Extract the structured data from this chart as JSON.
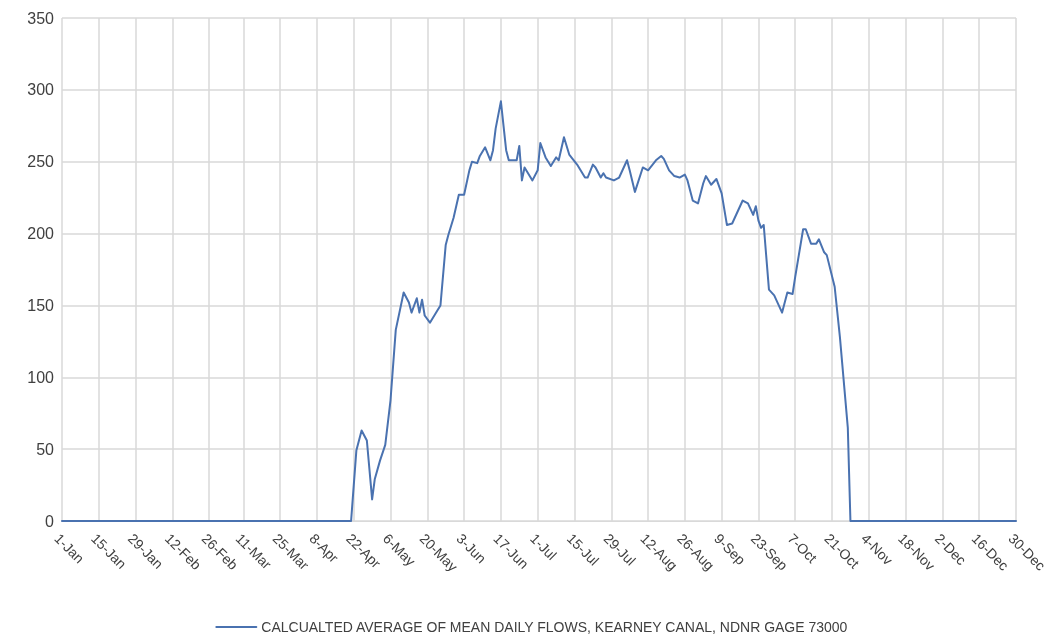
{
  "chart_data": {
    "type": "line",
    "x": [
      "--01-01",
      "--04-21",
      "--04-23",
      "--04-25",
      "--04-27",
      "--04-29",
      "--04-30",
      "--05-02",
      "--05-04",
      "--05-06",
      "--05-08",
      "--05-11",
      "--05-13",
      "--05-14",
      "--05-16",
      "--05-17",
      "--05-18",
      "--05-19",
      "--05-21",
      "--05-24",
      "--05-25",
      "--05-27",
      "--05-28",
      "--05-30",
      "--06-01",
      "--06-03",
      "--06-05",
      "--06-06",
      "--06-08",
      "--06-09",
      "--06-11",
      "--06-13",
      "--06-14",
      "--06-15",
      "--06-17",
      "--06-19",
      "--06-20",
      "--06-23",
      "--06-24",
      "--06-25",
      "--06-26",
      "--06-29",
      "--07-01",
      "--07-02",
      "--07-04",
      "--07-06",
      "--07-08",
      "--07-09",
      "--07-11",
      "--07-13",
      "--07-16",
      "--07-19",
      "--07-20",
      "--07-22",
      "--07-23",
      "--07-25",
      "--07-26",
      "--07-27",
      "--07-30",
      "--08-01",
      "--08-04",
      "--08-05",
      "--08-07",
      "--08-10",
      "--08-12",
      "--08-15",
      "--08-17",
      "--08-18",
      "--08-20",
      "--08-22",
      "--08-24",
      "--08-26",
      "--08-27",
      "--08-29",
      "--08-31",
      "--09-02",
      "--09-03",
      "--09-05",
      "--09-07",
      "--09-09",
      "--09-11",
      "--09-13",
      "--09-17",
      "--09-19",
      "--09-21",
      "--09-22",
      "--09-23",
      "--09-24",
      "--09-25",
      "--09-27",
      "--09-29",
      "--10-02",
      "--10-04",
      "--10-06",
      "--10-07",
      "--10-10",
      "--10-11",
      "--10-13",
      "--10-15",
      "--10-16",
      "--10-18",
      "--10-19",
      "--10-22",
      "--10-24",
      "--10-27",
      "--10-28",
      "--12-30"
    ],
    "series": [
      {
        "name": "CALCUALTED AVERAGE OF MEAN DAILY FLOWS, KEARNEY CANAL, NDNR GAGE 73000",
        "color": "#4a72b0",
        "values": [
          0,
          0,
          49,
          63,
          56,
          15,
          29,
          42,
          53,
          84,
          133,
          159,
          152,
          145,
          155,
          145,
          154,
          143,
          138,
          147,
          150,
          192,
          199,
          211,
          227,
          227,
          244,
          250,
          249,
          254,
          260,
          251,
          258,
          273,
          292,
          258,
          251,
          251,
          261,
          237,
          246,
          237,
          244,
          263,
          253,
          247,
          253,
          251,
          267,
          255,
          248,
          239,
          239,
          248,
          246,
          239,
          242,
          239,
          237,
          239,
          251,
          244,
          229,
          246,
          244,
          251,
          254,
          252,
          244,
          240,
          239,
          241,
          237,
          223,
          221,
          235,
          240,
          234,
          238,
          228,
          206,
          207,
          223,
          221,
          213,
          219,
          209,
          204,
          206,
          161,
          157,
          145,
          159,
          158,
          170,
          203,
          203,
          193,
          193,
          196,
          187,
          185,
          163,
          128,
          65,
          0,
          0
        ]
      }
    ],
    "xlim": [
      "--01-01",
      "--12-30"
    ],
    "xticks": [
      {
        "value": "--01-01",
        "label": "1-Jan"
      },
      {
        "value": "--01-15",
        "label": "15-Jan"
      },
      {
        "value": "--01-29",
        "label": "29-Jan"
      },
      {
        "value": "--02-12",
        "label": "12-Feb"
      },
      {
        "value": "--02-26",
        "label": "26-Feb"
      },
      {
        "value": "--03-11",
        "label": "11-Mar"
      },
      {
        "value": "--03-25",
        "label": "25-Mar"
      },
      {
        "value": "--04-08",
        "label": "8-Apr"
      },
      {
        "value": "--04-22",
        "label": "22-Apr"
      },
      {
        "value": "--05-06",
        "label": "6-May"
      },
      {
        "value": "--05-20",
        "label": "20-May"
      },
      {
        "value": "--06-03",
        "label": "3-Jun"
      },
      {
        "value": "--06-17",
        "label": "17-Jun"
      },
      {
        "value": "--07-01",
        "label": "1-Jul"
      },
      {
        "value": "--07-15",
        "label": "15-Jul"
      },
      {
        "value": "--07-29",
        "label": "29-Jul"
      },
      {
        "value": "--08-12",
        "label": "12-Aug"
      },
      {
        "value": "--08-26",
        "label": "26-Aug"
      },
      {
        "value": "--09-09",
        "label": "9-Sep"
      },
      {
        "value": "--09-23",
        "label": "23-Sep"
      },
      {
        "value": "--10-07",
        "label": "7-Oct"
      },
      {
        "value": "--10-21",
        "label": "21-Oct"
      },
      {
        "value": "--11-04",
        "label": "4-Nov"
      },
      {
        "value": "--11-18",
        "label": "18-Nov"
      },
      {
        "value": "--12-02",
        "label": "2-Dec"
      },
      {
        "value": "--12-16",
        "label": "16-Dec"
      },
      {
        "value": "--12-30",
        "label": "30-Dec"
      }
    ],
    "ylim": [
      0,
      350
    ],
    "yticks": [
      0,
      50,
      100,
      150,
      200,
      250,
      300,
      350
    ],
    "grid": true,
    "legend": "bottom",
    "marker": "none",
    "line_style": "solid"
  }
}
